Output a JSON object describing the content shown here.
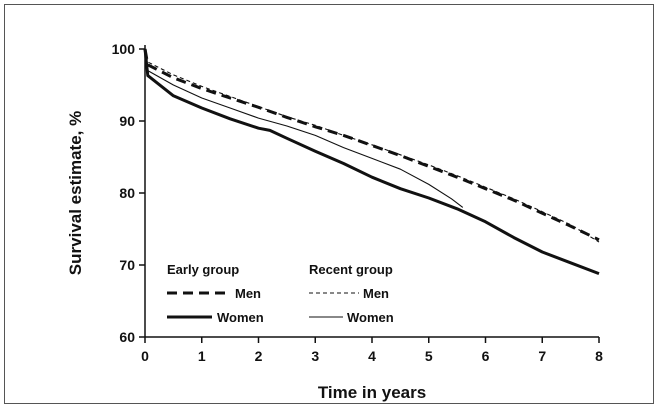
{
  "chart_data": {
    "type": "line",
    "title": "",
    "xlabel": "Time in years",
    "ylabel": "Survival estimate, %",
    "xlim": [
      0,
      8
    ],
    "ylim": [
      60,
      100
    ],
    "xticks": [
      "0",
      "1",
      "2",
      "3",
      "4",
      "5",
      "6",
      "7",
      "8"
    ],
    "yticks": [
      "60",
      "70",
      "80",
      "90",
      "100"
    ],
    "grid": false,
    "legend": {
      "placement": "bottom-left",
      "groups": [
        {
          "title": "Early group",
          "entries": [
            "Men",
            "Women"
          ]
        },
        {
          "title": "Recent group",
          "entries": [
            "Men",
            "Women"
          ]
        }
      ]
    },
    "series": [
      {
        "group": "Early group",
        "name": "Men",
        "style": "thick-dashed",
        "x": [
          0,
          0.05,
          0.5,
          1,
          1.5,
          2,
          2.5,
          3,
          3.5,
          4,
          4.5,
          5,
          5.5,
          6,
          6.5,
          7,
          7.5,
          8
        ],
        "y": [
          100,
          97.8,
          96,
          94.5,
          93.2,
          91.9,
          90.5,
          89.2,
          88,
          86.6,
          85.2,
          83.7,
          82.2,
          80.6,
          79,
          77.2,
          75.4,
          73.5
        ]
      },
      {
        "group": "Early group",
        "name": "Women",
        "style": "thick-solid",
        "x": [
          0,
          0.05,
          0.5,
          1,
          1.5,
          2,
          2.2,
          2.5,
          3,
          3.5,
          4,
          4.5,
          5,
          5.5,
          6,
          6.5,
          7,
          7.5,
          8
        ],
        "y": [
          100,
          96.3,
          93.5,
          91.8,
          90.3,
          89,
          88.7,
          87.6,
          85.8,
          84.1,
          82.2,
          80.6,
          79.3,
          77.8,
          76,
          73.8,
          71.8,
          70.3,
          68.8
        ]
      },
      {
        "group": "Recent group",
        "name": "Men",
        "style": "thin-dashed",
        "x": [
          0,
          0.05,
          0.5,
          1,
          1.5,
          2,
          2.5,
          3,
          3.5,
          4,
          4.5,
          5,
          5.5,
          6,
          6.5,
          7,
          7.5,
          8
        ],
        "y": [
          100,
          98.2,
          96.4,
          94.8,
          93.4,
          92,
          90.6,
          89.4,
          88,
          86.7,
          85.3,
          83.9,
          82.4,
          80.8,
          79.2,
          77.4,
          75.6,
          73.2
        ]
      },
      {
        "group": "Recent group",
        "name": "Women",
        "style": "thin-solid",
        "x": [
          0,
          0.05,
          0.5,
          1,
          1.5,
          2,
          2.5,
          3,
          3.5,
          4,
          4.5,
          5,
          5.4,
          5.6
        ],
        "y": [
          100,
          97,
          95,
          93.2,
          91.8,
          90.4,
          89.3,
          88,
          86.3,
          84.8,
          83.3,
          81.2,
          79.2,
          78
        ]
      }
    ]
  }
}
